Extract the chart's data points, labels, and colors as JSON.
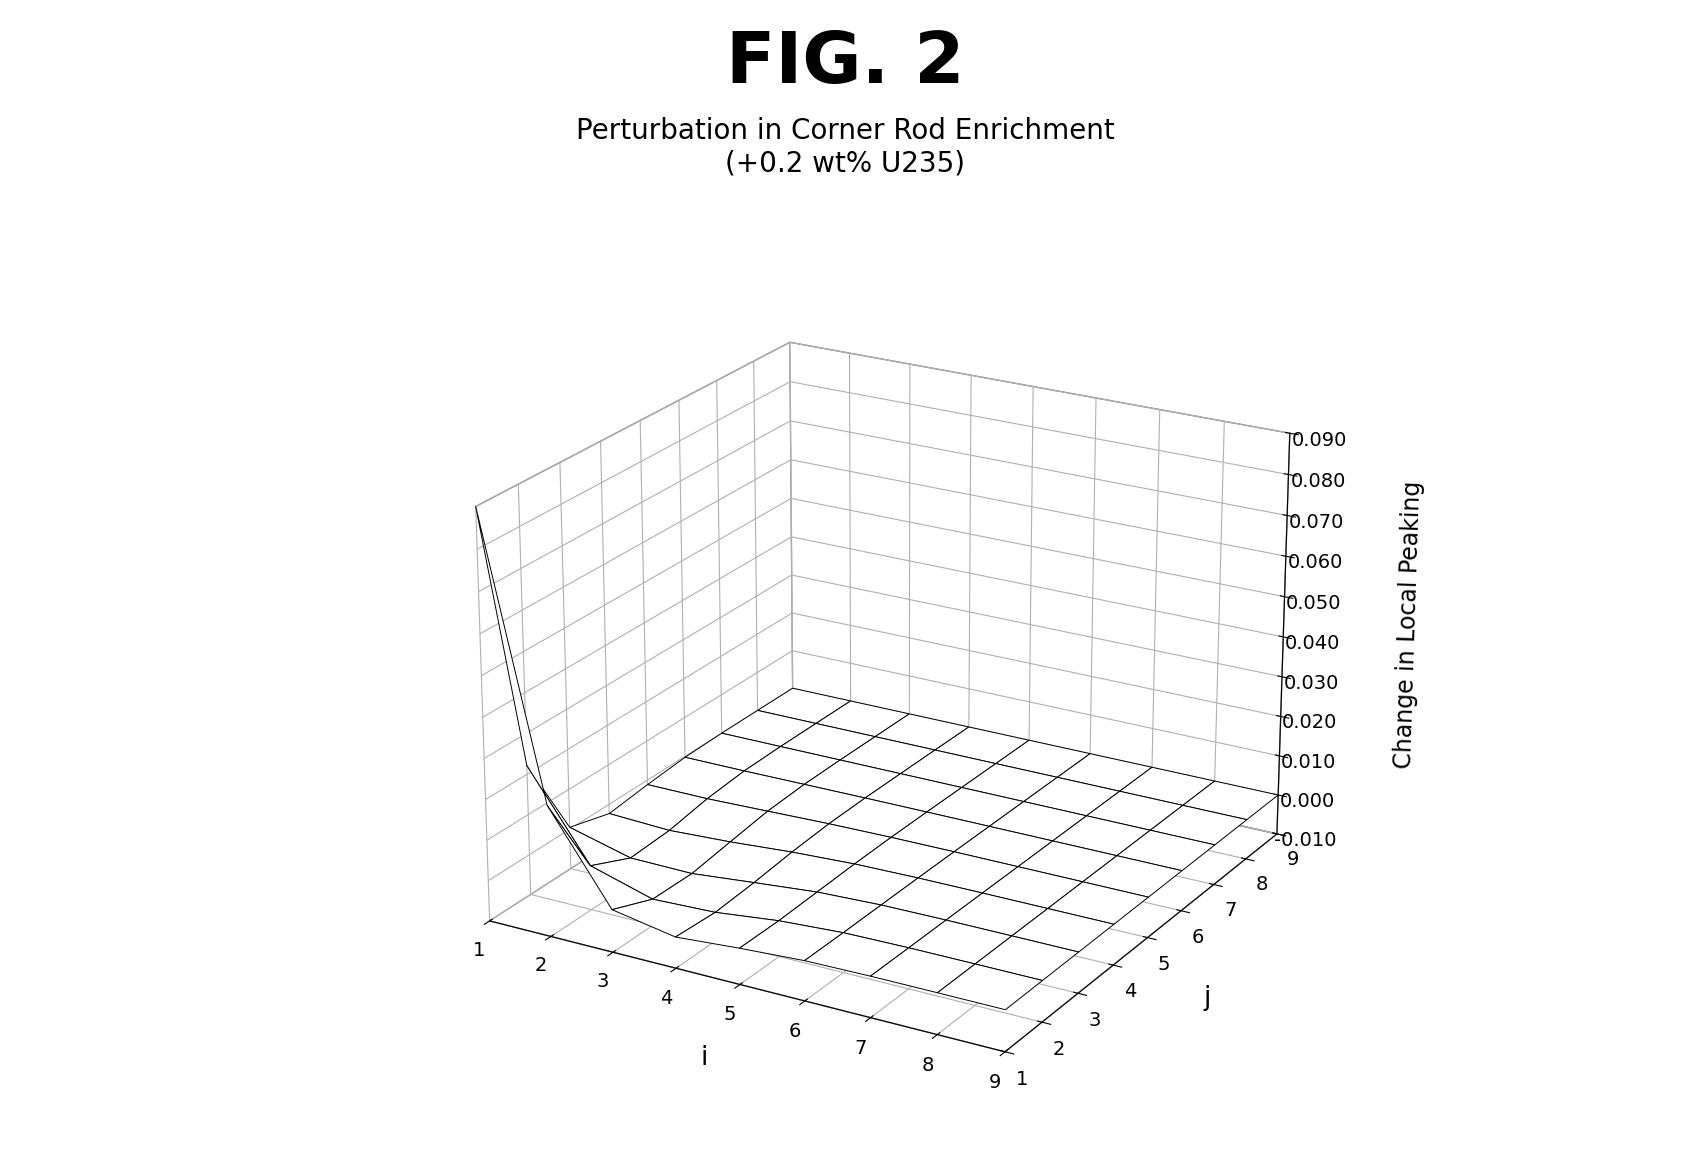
{
  "title_main": "FIG. 2",
  "title_sub1": "Perturbation in Corner Rod Enrichment",
  "title_sub2": "(+0.2 wt% U235)",
  "xlabel": "i",
  "ylabel": "j",
  "zlabel": "Change in Local Peaking",
  "x_ticks": [
    1,
    2,
    3,
    4,
    5,
    6,
    7,
    8,
    9
  ],
  "y_ticks": [
    1,
    2,
    3,
    4,
    5,
    6,
    7,
    8,
    9
  ],
  "z_ticks": [
    -0.01,
    0.0,
    0.01,
    0.02,
    0.03,
    0.04,
    0.05,
    0.06,
    0.07,
    0.08,
    0.09
  ],
  "zlim": [
    -0.01,
    0.09
  ],
  "background_color": "#ffffff",
  "surface_color": "#ffffff",
  "edge_color": "#000000",
  "title_main_fontsize": 52,
  "title_sub_fontsize": 20,
  "axis_label_fontsize": 17,
  "tick_fontsize": 14,
  "elev": 22,
  "azim": -60
}
